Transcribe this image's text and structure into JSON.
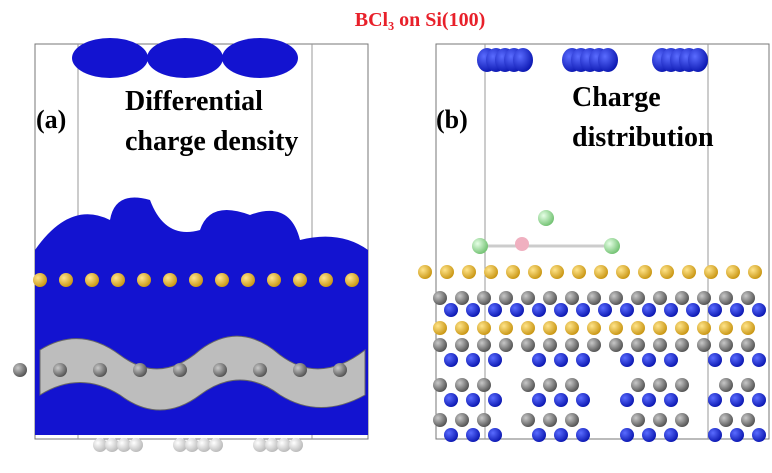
{
  "title": "BCl₃ on Si(100)",
  "panels": [
    {
      "tag": "(a)",
      "label_lines": [
        "Differential",
        "charge density"
      ]
    },
    {
      "tag": "(b)",
      "label_lines": [
        "Charge",
        "distribution"
      ]
    }
  ]
}
